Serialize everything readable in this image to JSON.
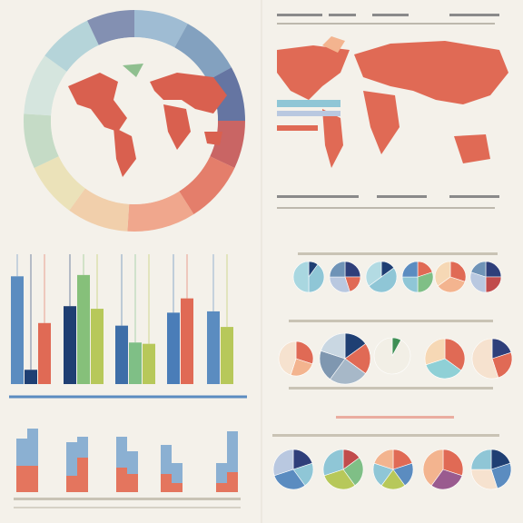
{
  "chart_data": [
    {
      "type": "grouped-bar",
      "ylim": [
        0,
        100
      ],
      "series": [
        {
          "values": [
            83,
            60,
            45,
            55,
            56
          ],
          "colors": [
            "#5b8cc0",
            "#1f3f73",
            "#3e6ea8",
            "#4a7db8",
            "#5b8cc0"
          ]
        },
        {
          "values": [
            11,
            84,
            32,
            null,
            null
          ],
          "colors": [
            "#1f3f73",
            "#86c07a",
            "#7fbf86",
            null,
            null
          ]
        },
        {
          "values": [
            47,
            58,
            31,
            66,
            44
          ],
          "colors": [
            "#e06a55",
            "#b7c85a",
            "#b7c85a",
            "#e06a55",
            "#b7c85a"
          ]
        }
      ]
    },
    {
      "type": "stacked-bar",
      "ylim": [
        0,
        80
      ],
      "series": [
        {
          "color": "#e2674f",
          "values": [
            29,
            29,
            18,
            38,
            27,
            20,
            20,
            10,
            10,
            22
          ]
        },
        {
          "color": "#7fa8cf",
          "values": [
            30,
            41,
            37,
            23,
            34,
            25,
            32,
            22,
            22,
            45
          ]
        }
      ]
    },
    {
      "type": "donut",
      "values": [
        8,
        9,
        8,
        7,
        9,
        10,
        9,
        8,
        8,
        9,
        8,
        7
      ],
      "colors": [
        "#8fb3cf",
        "#6f93b7",
        "#4b5f95",
        "#c14c4c",
        "#e06a55",
        "#ee9a7c",
        "#f0c9a0",
        "#e9dfb0",
        "#bcd7bf",
        "#cfe3dc",
        "#a9cfd6",
        "#6e7fa8"
      ]
    },
    {
      "type": "pie",
      "values": [
        10,
        40,
        50
      ],
      "colors": [
        "#1f3f73",
        "#8fc6d6",
        "#a9d7e0"
      ]
    },
    {
      "type": "pie",
      "values": [
        25,
        20,
        30,
        25
      ],
      "colors": [
        "#2f3f7a",
        "#e06a55",
        "#b9c8e0",
        "#6f93b7"
      ]
    },
    {
      "type": "pie",
      "values": [
        15,
        50,
        35
      ],
      "colors": [
        "#1f3f73",
        "#8fc6d6",
        "#b3dbe3"
      ]
    },
    {
      "type": "pie",
      "values": [
        20,
        30,
        25,
        25
      ],
      "colors": [
        "#e06a55",
        "#7fbf86",
        "#8fc6d6",
        "#5b8cc0"
      ]
    },
    {
      "type": "pie",
      "values": [
        30,
        35,
        35
      ],
      "colors": [
        "#e06a55",
        "#f3b48f",
        "#f6d8b5"
      ]
    },
    {
      "type": "pie",
      "values": [
        25,
        25,
        30,
        20
      ],
      "colors": [
        "#2f3f7a",
        "#c14c4c",
        "#b9c8e0",
        "#6f93b7"
      ]
    },
    {
      "type": "pie",
      "values": [
        30,
        25,
        45
      ],
      "colors": [
        "#e06a55",
        "#f3b48f",
        "#f6e2cf"
      ]
    },
    {
      "type": "pie",
      "values": [
        15,
        20,
        25,
        20,
        20
      ],
      "colors": [
        "#1f3f73",
        "#e06a55",
        "#a7b8c8",
        "#7f97b0",
        "#c9d7e2"
      ]
    },
    {
      "type": "pie",
      "values": [
        8,
        92
      ],
      "colors": [
        "#3f8f55",
        "#f2efe6"
      ]
    },
    {
      "type": "pie",
      "values": [
        35,
        35,
        30
      ],
      "colors": [
        "#e06a55",
        "#8fd0d6",
        "#f6d8b5"
      ]
    },
    {
      "type": "pie",
      "values": [
        20,
        25,
        55
      ],
      "colors": [
        "#2f3f7a",
        "#e06a55",
        "#f6e2cf"
      ]
    },
    {
      "type": "pie",
      "values": [
        20,
        20,
        30,
        30
      ],
      "colors": [
        "#2f3f7a",
        "#8fc6d6",
        "#5b8cc0",
        "#b9c8e0"
      ]
    },
    {
      "type": "pie",
      "values": [
        15,
        25,
        30,
        30
      ],
      "colors": [
        "#c14c4c",
        "#7fbf86",
        "#b7c85a",
        "#8fc6d6"
      ]
    },
    {
      "type": "pie",
      "values": [
        20,
        20,
        20,
        20,
        20
      ],
      "colors": [
        "#e06a55",
        "#5b8cc0",
        "#b7c85a",
        "#8fc6d6",
        "#f3b48f"
      ]
    },
    {
      "type": "pie",
      "values": [
        30,
        30,
        40
      ],
      "colors": [
        "#e06a55",
        "#9a5b8f",
        "#f3b48f"
      ]
    },
    {
      "type": "pie",
      "values": [
        20,
        25,
        30,
        25
      ],
      "colors": [
        "#1f3f73",
        "#5b8cc0",
        "#f6e2cf",
        "#8fc6d6"
      ]
    }
  ]
}
